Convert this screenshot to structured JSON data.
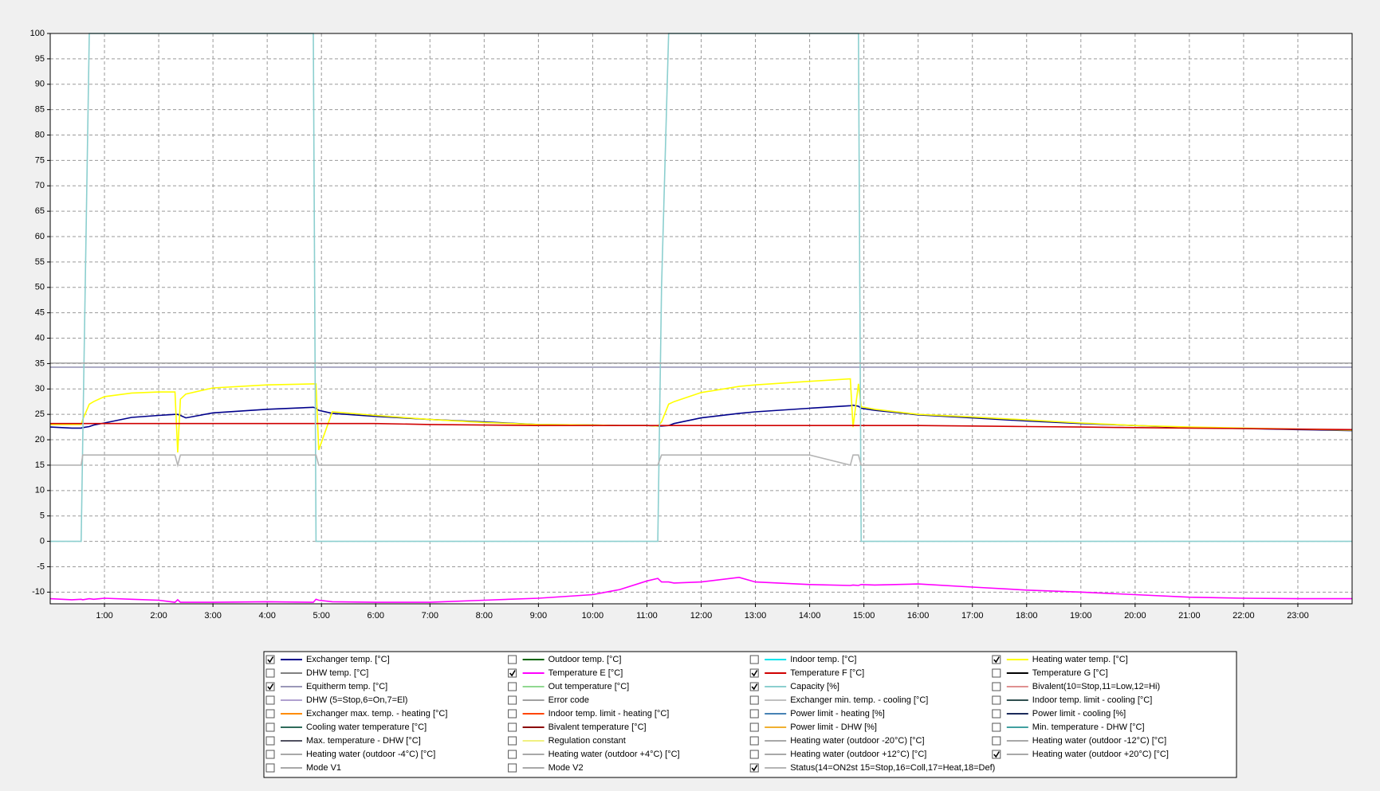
{
  "chart_data": {
    "type": "line",
    "xlim": [
      0,
      24
    ],
    "ylim": [
      -12.3,
      100
    ],
    "yticks": [
      -10,
      -5,
      0,
      5,
      10,
      15,
      20,
      25,
      30,
      35,
      40,
      45,
      50,
      55,
      60,
      65,
      70,
      75,
      80,
      85,
      90,
      95,
      100
    ],
    "xticks": [
      {
        "value": 1,
        "label": "1:00"
      },
      {
        "value": 2,
        "label": "2:00"
      },
      {
        "value": 3,
        "label": "3:00"
      },
      {
        "value": 4,
        "label": "4:00"
      },
      {
        "value": 5,
        "label": "5:00"
      },
      {
        "value": 6,
        "label": "6:00"
      },
      {
        "value": 7,
        "label": "7:00"
      },
      {
        "value": 8,
        "label": "8:00"
      },
      {
        "value": 9,
        "label": "9:00"
      },
      {
        "value": 10,
        "label": "10:00"
      },
      {
        "value": 11,
        "label": "11:00"
      },
      {
        "value": 12,
        "label": "12:00"
      },
      {
        "value": 13,
        "label": "13:00"
      },
      {
        "value": 14,
        "label": "14:00"
      },
      {
        "value": 15,
        "label": "15:00"
      },
      {
        "value": 16,
        "label": "16:00"
      },
      {
        "value": 17,
        "label": "17:00"
      },
      {
        "value": 18,
        "label": "18:00"
      },
      {
        "value": 19,
        "label": "19:00"
      },
      {
        "value": 20,
        "label": "20:00"
      },
      {
        "value": 21,
        "label": "21:00"
      },
      {
        "value": 22,
        "label": "22:00"
      },
      {
        "value": 23,
        "label": "23:00"
      }
    ],
    "grid": true,
    "x": [
      0,
      0.4,
      0.57,
      0.6,
      0.72,
      0.8,
      1.0,
      1.5,
      2.0,
      2.3,
      2.35,
      2.4,
      2.5,
      3.0,
      4.0,
      4.85,
      4.9,
      4.95,
      5.2,
      6,
      7,
      8,
      9,
      10,
      10.5,
      11,
      11.2,
      11.27,
      11.4,
      11.5,
      12,
      12.7,
      13,
      14,
      14.75,
      14.8,
      14.9,
      14.95,
      15.2,
      16,
      17,
      18,
      19,
      20,
      21,
      22,
      23,
      24
    ],
    "series": [
      {
        "name": "Exchanger temp. [°C]",
        "color": "#00008b",
        "checked": true,
        "values": [
          22.5,
          22.3,
          22.3,
          22.4,
          22.6,
          22.9,
          23.3,
          24.4,
          24.8,
          25,
          25,
          24.8,
          24.3,
          25.3,
          26,
          26.4,
          26.2,
          25.8,
          25.2,
          24.6,
          24,
          23.5,
          23,
          22.9,
          22.8,
          22.8,
          22.7,
          22.7,
          22.8,
          23.2,
          24.3,
          25.2,
          25.5,
          26.2,
          26.7,
          26.8,
          26.6,
          26.2,
          25.8,
          24.9,
          24.3,
          23.7,
          23.2,
          22.8,
          22.4,
          22.2,
          22,
          21.8
        ]
      },
      {
        "name": "Outdoor temp. [°C]",
        "color": "#006400",
        "checked": false
      },
      {
        "name": "Indoor temp. [°C]",
        "color": "#00e5ee",
        "checked": false
      },
      {
        "name": "Heating water temp. [°C]",
        "color": "#ffff00",
        "checked": true,
        "values": [
          23,
          23,
          23,
          24,
          27,
          27.5,
          28.5,
          29.2,
          29.4,
          29.4,
          17.5,
          28,
          29,
          30.2,
          30.8,
          31,
          31,
          18,
          25.5,
          24.8,
          24,
          23.4,
          23,
          22.9,
          22.8,
          22.8,
          22.7,
          23.5,
          27,
          27.5,
          29.3,
          30.5,
          30.8,
          31.5,
          32,
          22.5,
          31,
          26.5,
          26,
          25,
          24.5,
          23.9,
          23.3,
          22.8,
          22.5,
          22.3,
          22.1,
          21.9
        ]
      },
      {
        "name": "DHW temp. [°C]",
        "color": "#808080",
        "checked": false
      },
      {
        "name": "Temperature E [°C]",
        "color": "#ff00ff",
        "checked": true,
        "values": [
          -11.3,
          -11.5,
          -11.4,
          -11.5,
          -11.3,
          -11.4,
          -11.2,
          -11.4,
          -11.6,
          -12,
          -11.5,
          -12,
          -12,
          -12,
          -11.9,
          -12,
          -11.4,
          -11.6,
          -11.9,
          -12,
          -12,
          -11.6,
          -11.2,
          -10.5,
          -9.5,
          -7.8,
          -7.3,
          -8,
          -8,
          -8.2,
          -8,
          -7.1,
          -8,
          -8.5,
          -8.7,
          -8.6,
          -8.7,
          -8.5,
          -8.6,
          -8.4,
          -9,
          -9.6,
          -10,
          -10.5,
          -11,
          -11.2,
          -11.3,
          -11.3
        ]
      },
      {
        "name": "Temperature F [°C]",
        "color": "#d00000",
        "checked": true,
        "values": [
          23.2,
          23.2,
          23.2,
          23.2,
          23.2,
          23.2,
          23.2,
          23.2,
          23.2,
          23.2,
          23.2,
          23.2,
          23.2,
          23.2,
          23.2,
          23.2,
          23.2,
          23.2,
          23.2,
          23.2,
          23,
          22.9,
          22.8,
          22.8,
          22.8,
          22.8,
          22.8,
          22.8,
          22.8,
          22.8,
          22.8,
          22.8,
          22.8,
          22.8,
          22.8,
          22.8,
          22.8,
          22.8,
          22.8,
          22.8,
          22.7,
          22.6,
          22.5,
          22.4,
          22.3,
          22.2,
          22.1,
          22
        ]
      },
      {
        "name": "Temperature G [°C]",
        "color": "#000000",
        "checked": false
      },
      {
        "name": "Equitherm temp. [°C]",
        "color": "#9a98b8",
        "checked": true,
        "values": [
          34.3,
          34.3,
          34.3,
          34.3,
          34.3,
          34.3,
          34.3,
          34.3,
          34.3,
          34.3,
          34.3,
          34.3,
          34.3,
          34.3,
          34.3,
          34.3,
          34.3,
          34.3,
          34.3,
          34.3,
          34.3,
          34.3,
          34.3,
          34.3,
          34.3,
          34.3,
          34.3,
          34.3,
          34.3,
          34.3,
          34.3,
          34.3,
          34.3,
          34.3,
          34.3,
          34.3,
          34.3,
          34.3,
          34.3,
          34.3,
          34.3,
          34.3,
          34.3,
          34.3,
          34.3,
          34.3,
          34.3,
          34.3
        ]
      },
      {
        "name": "Out temperature [°C]",
        "color": "#90d890",
        "checked": false
      },
      {
        "name": "Capacity [%]",
        "color": "#8ccfcf",
        "checked": true,
        "values": [
          0,
          0,
          0,
          20,
          100,
          100,
          100,
          100,
          100,
          100,
          100,
          100,
          100,
          100,
          100,
          100,
          0,
          0,
          0,
          0,
          0,
          0,
          0,
          0,
          0,
          0,
          0,
          50,
          100,
          100,
          100,
          100,
          100,
          100,
          100,
          100,
          100,
          0,
          0,
          0,
          0,
          0,
          0,
          0,
          0,
          0,
          0,
          0
        ]
      },
      {
        "name": "Bivalent(10=Stop,11=Low,12=Hi)",
        "color": "#e09090",
        "checked": false
      },
      {
        "name": "DHW (5=Stop,6=On,7=El)",
        "color": "#b0a0d0",
        "checked": false
      },
      {
        "name": "Error code",
        "color": "#a0a0a0",
        "checked": false
      },
      {
        "name": "Exchanger min. temp. - cooling [°C]",
        "color": "#c0c0c0",
        "checked": false
      },
      {
        "name": "Indoor temp. limit - cooling [°C]",
        "color": "#2f4f4f",
        "checked": false
      },
      {
        "name": "Exchanger max. temp. - heating [°C]",
        "color": "#ff8c00",
        "checked": false
      },
      {
        "name": "Indoor temp. limit - heating [°C]",
        "color": "#ff4500",
        "checked": false
      },
      {
        "name": "Power limit - heating [%]",
        "color": "#4682b4",
        "checked": false
      },
      {
        "name": "Power limit - cooling [%]",
        "color": "#1a2a5a",
        "checked": false
      },
      {
        "name": "Cooling water temperature [°C]",
        "color": "#2e6b5a",
        "checked": false
      },
      {
        "name": "Bivalent temperature [°C]",
        "color": "#8b0000",
        "checked": false
      },
      {
        "name": "Power limit - DHW [%]",
        "color": "#f0b030",
        "checked": false
      },
      {
        "name": "Min. temperature - DHW [°C]",
        "color": "#40a0a0",
        "checked": false
      },
      {
        "name": "Max. temperature - DHW [°C]",
        "color": "#505060",
        "checked": false
      },
      {
        "name": "Regulation constant",
        "color": "#f0f080",
        "checked": false
      },
      {
        "name": "Heating water (outdoor -20°C) [°C]",
        "color": "#a8a8a8",
        "checked": false
      },
      {
        "name": "Heating water (outdoor -12°C) [°C]",
        "color": "#a8a8a8",
        "checked": false
      },
      {
        "name": "Heating water (outdoor -4°C) [°C]",
        "color": "#a8a8a8",
        "checked": false
      },
      {
        "name": "Heating water (outdoor +4°C) [°C]",
        "color": "#a8a8a8",
        "checked": false
      },
      {
        "name": "Heating water (outdoor +12°C) [°C]",
        "color": "#a8a8a8",
        "checked": false
      },
      {
        "name": "Heating water (outdoor +20°C) [°C]",
        "color": "#a8a8a8",
        "checked": true,
        "values": [
          35.1,
          35.1,
          35.1,
          35.1,
          35.1,
          35.1,
          35.1,
          35.1,
          35.1,
          35.1,
          35.1,
          35.1,
          35.1,
          35.1,
          35.1,
          35.1,
          35.1,
          35.1,
          35.1,
          35.1,
          35.1,
          35.1,
          35.1,
          35.1,
          35.1,
          35.1,
          35.1,
          35.1,
          35.1,
          35.1,
          35.1,
          35.1,
          35.1,
          35.1,
          35.1,
          35.1,
          35.1,
          35.1,
          35.1,
          35.1,
          35.1,
          35.1,
          35.1,
          35.1,
          35.1,
          35.1,
          35.1,
          35.1
        ]
      },
      {
        "name": "Mode V1",
        "color": "#a8a8a8",
        "checked": false
      },
      {
        "name": "Mode V2",
        "color": "#a8a8a8",
        "checked": false
      },
      {
        "name": "Status(14=ON2st 15=Stop,16=Coll,17=Heat,18=Def)",
        "color": "#b4b4b4",
        "checked": true,
        "values": [
          15,
          15,
          15,
          17,
          17,
          17,
          17,
          17,
          17,
          17,
          15,
          17,
          17,
          17,
          17,
          17,
          17,
          15,
          15,
          15,
          15,
          15,
          15,
          15,
          15,
          15,
          15,
          17,
          17,
          17,
          17,
          17,
          17,
          17,
          15,
          17,
          17,
          15,
          15,
          15,
          15,
          15,
          15,
          15,
          15,
          15,
          15,
          15
        ]
      }
    ]
  }
}
